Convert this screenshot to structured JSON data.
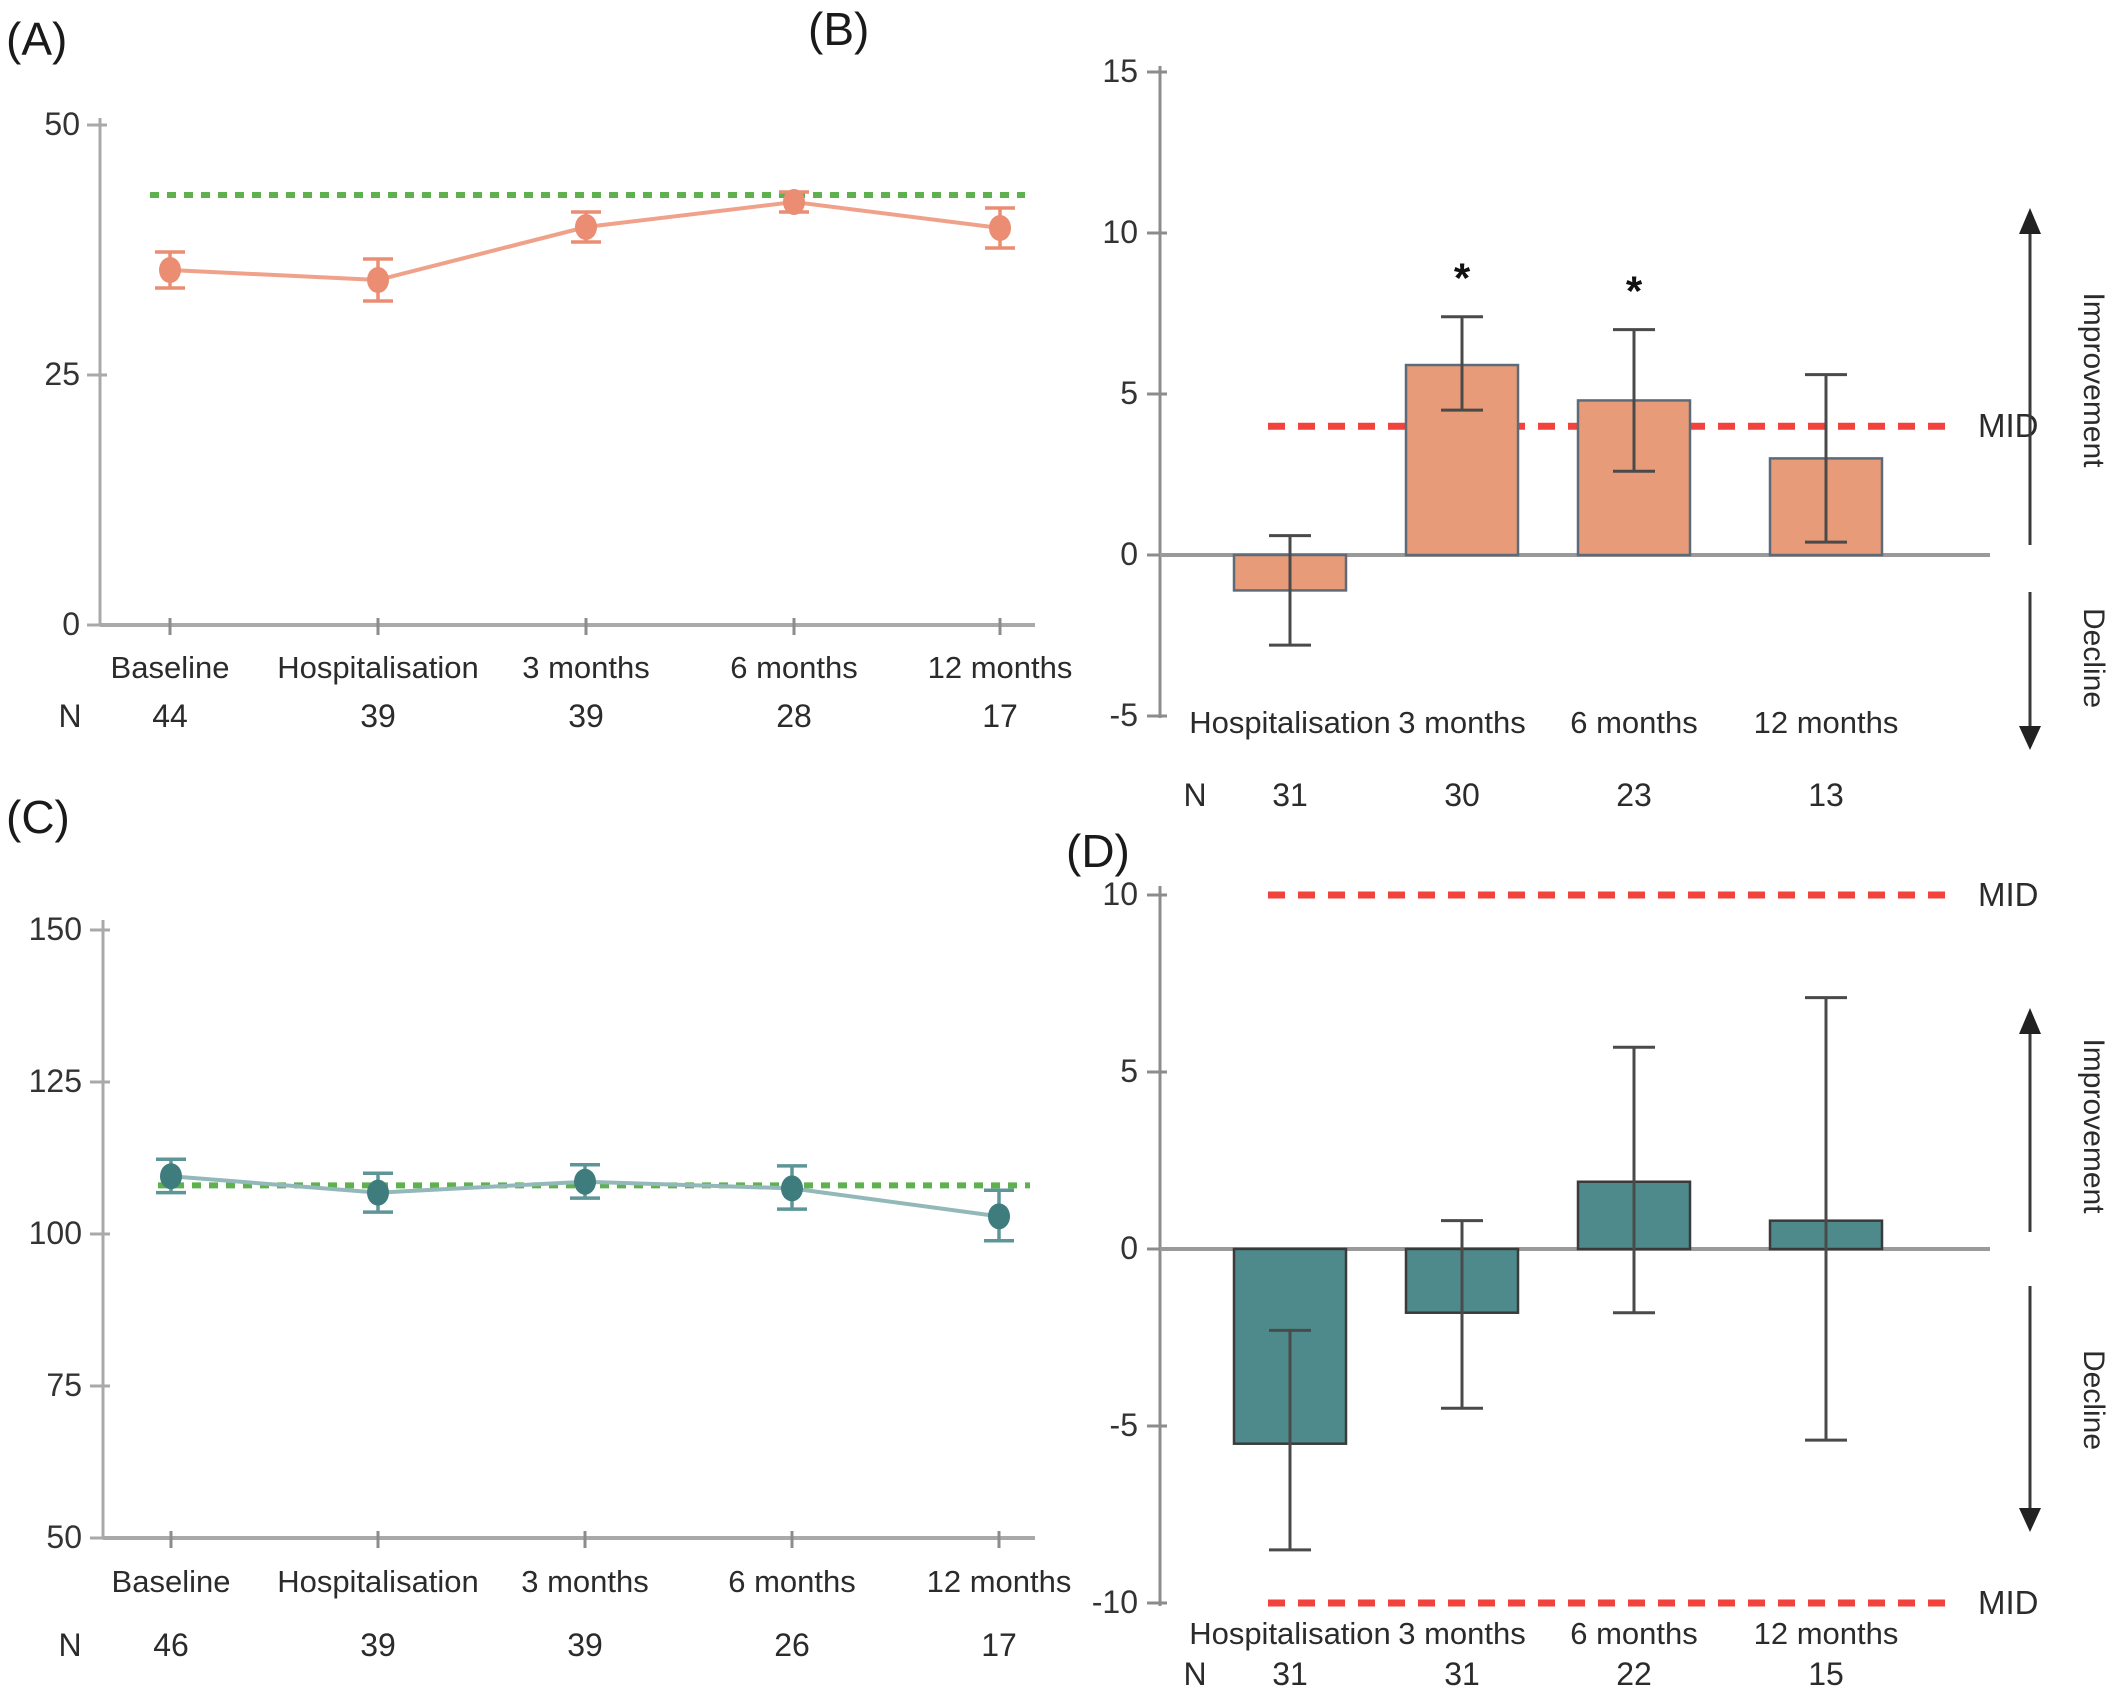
{
  "figure": {
    "panel_labels": [
      "(A)",
      "(B)",
      "(C)",
      "(D)"
    ],
    "n_row_label": "N",
    "mid_label": "MID",
    "improvement_label": "Improvement",
    "decline_label": "Decline",
    "colors": {
      "salmon_line": "#F0A189",
      "salmon_point": "#EA8D72",
      "orange_bar_fill": "#E89B78",
      "orange_bar_border": "#5C6B77",
      "teal_line": "#92B8B9",
      "teal_point": "#3E7C7E",
      "teal_bar_fill": "#4E8A8B",
      "teal_bar_border": "#3A3A3A",
      "green_dashed": "#5FB04E",
      "red_dashed": "#F2423C",
      "axis_gray": "#A9A9A9",
      "error_bar_dark": "#4A4A4A",
      "text": "#2B2B2B"
    }
  },
  "chart_data": [
    {
      "panel": "(A)",
      "type": "line",
      "categories": [
        "Baseline",
        "Hospitalisation",
        "3 months",
        "6 months",
        "12 months"
      ],
      "values": [
        35.5,
        34.5,
        39.8,
        42.3,
        39.7
      ],
      "error_low": [
        33.7,
        32.4,
        38.3,
        41.3,
        37.7
      ],
      "error_high": [
        37.3,
        36.6,
        41.3,
        43.3,
        41.7
      ],
      "reference_line": {
        "value": 43,
        "style": "dashed",
        "color": "green"
      },
      "y_axis": {
        "min": 0,
        "max": 50,
        "ticks": [
          50,
          25,
          0
        ]
      },
      "n_label": "N",
      "n_values": [
        44,
        39,
        39,
        28,
        17
      ],
      "grid": false,
      "legend_position": "none"
    },
    {
      "panel": "(B)",
      "type": "bar",
      "categories": [
        "Hospitalisation",
        "3 months",
        "6 months",
        "12 months"
      ],
      "values": [
        -1.1,
        5.9,
        4.8,
        3.0
      ],
      "error_low": [
        -2.8,
        4.5,
        2.6,
        0.4
      ],
      "error_high": [
        0.6,
        7.4,
        7.0,
        5.6
      ],
      "significance": [
        "",
        "*",
        "*",
        ""
      ],
      "mid_lines": [
        {
          "value": 4,
          "label": "MID"
        }
      ],
      "y_axis": {
        "min": -5,
        "max": 15,
        "ticks": [
          15,
          10,
          5,
          0,
          -5
        ]
      },
      "n_label": "N",
      "n_values": [
        31,
        30,
        23,
        13
      ],
      "right_annotations": [
        "Improvement",
        "Decline"
      ],
      "grid": false,
      "legend_position": "none"
    },
    {
      "panel": "(C)",
      "type": "line",
      "categories": [
        "Baseline",
        "Hospitalisation",
        "3 months",
        "6 months",
        "12 months"
      ],
      "values": [
        109.5,
        106.8,
        108.6,
        107.5,
        102.9
      ],
      "error_low": [
        106.8,
        103.6,
        105.9,
        104.1,
        98.9
      ],
      "error_high": [
        112.3,
        110.0,
        111.4,
        111.2,
        107.2
      ],
      "reference_line": {
        "value": 108,
        "style": "dashed",
        "color": "green"
      },
      "y_axis": {
        "min": 50,
        "max": 150,
        "ticks": [
          150,
          125,
          100,
          75,
          50
        ]
      },
      "n_label": "N",
      "n_values": [
        46,
        39,
        39,
        26,
        17
      ],
      "grid": false,
      "legend_position": "none"
    },
    {
      "panel": "(D)",
      "type": "bar",
      "categories": [
        "Hospitalisation",
        "3 months",
        "6 months",
        "12 months"
      ],
      "values": [
        -5.5,
        -1.8,
        1.9,
        0.8
      ],
      "error_low": [
        -8.5,
        -4.5,
        -1.8,
        -5.4
      ],
      "error_high": [
        -2.3,
        0.8,
        5.7,
        7.1
      ],
      "significance": [
        "",
        "",
        "",
        ""
      ],
      "mid_lines": [
        {
          "value": 10,
          "label": "MID"
        },
        {
          "value": -10,
          "label": "MID"
        }
      ],
      "y_axis": {
        "min": -10,
        "max": 10,
        "ticks": [
          10,
          5,
          0,
          -5,
          -10
        ]
      },
      "n_label": "N",
      "n_values": [
        31,
        31,
        22,
        15
      ],
      "right_annotations": [
        "Improvement",
        "Decline"
      ],
      "grid": false,
      "legend_position": "none"
    }
  ]
}
